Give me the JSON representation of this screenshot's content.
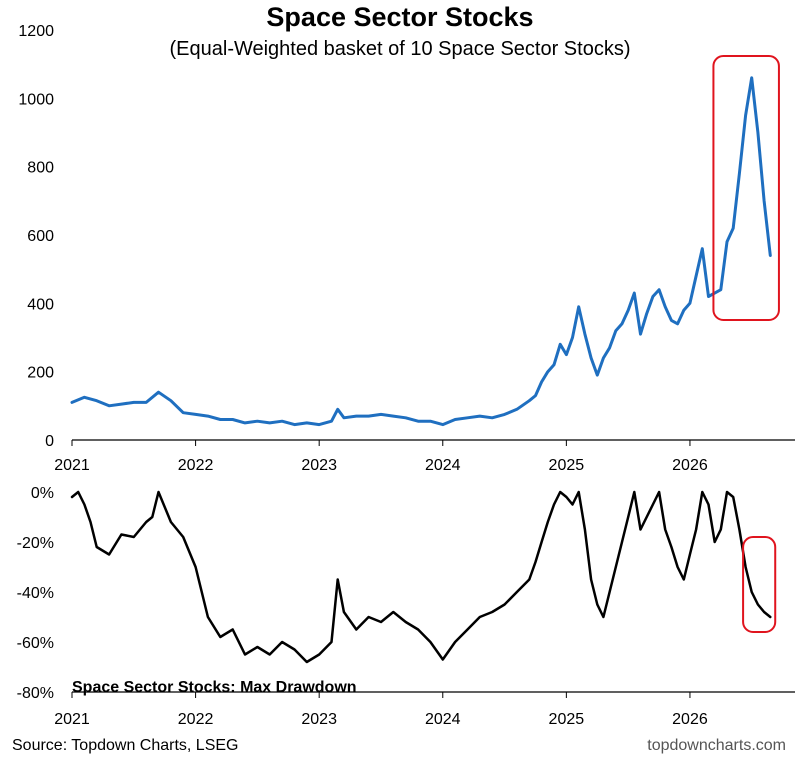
{
  "chart_data": [
    {
      "type": "line",
      "title": "Space Sector Stocks",
      "subtitle": "(Equal-Weighted basket of 10 Space Sector Stocks)",
      "ylim": [
        0,
        1200
      ],
      "xlim": [
        2021.0,
        2026.85
      ],
      "y_ticks": [
        "0",
        "200",
        "400",
        "600",
        "800",
        "1000",
        "1200"
      ],
      "x_ticks": [
        "2021",
        "2022",
        "2023",
        "2024",
        "2025",
        "2026"
      ],
      "series_color": "#1f6fc0",
      "highlight_color": "#e0141e",
      "highlight_x_range": [
        2026.19,
        2026.72
      ],
      "x": [
        2021.0,
        2021.1,
        2021.2,
        2021.3,
        2021.4,
        2021.5,
        2021.6,
        2021.7,
        2021.8,
        2021.9,
        2022.0,
        2022.1,
        2022.2,
        2022.3,
        2022.4,
        2022.5,
        2022.6,
        2022.7,
        2022.8,
        2022.9,
        2023.0,
        2023.1,
        2023.15,
        2023.2,
        2023.3,
        2023.4,
        2023.5,
        2023.6,
        2023.7,
        2023.8,
        2023.9,
        2024.0,
        2024.1,
        2024.2,
        2024.3,
        2024.4,
        2024.5,
        2024.6,
        2024.7,
        2024.75,
        2024.8,
        2024.85,
        2024.9,
        2024.95,
        2025.0,
        2025.05,
        2025.1,
        2025.15,
        2025.2,
        2025.25,
        2025.3,
        2025.35,
        2025.4,
        2025.45,
        2025.5,
        2025.55,
        2025.6,
        2025.65,
        2025.7,
        2025.75,
        2025.8,
        2025.85,
        2025.9,
        2025.95,
        2026.0,
        2026.05,
        2026.1,
        2026.15,
        2026.2,
        2026.25,
        2026.3,
        2026.35,
        2026.4,
        2026.45,
        2026.5,
        2026.55,
        2026.6,
        2026.65
      ],
      "values": [
        110,
        125,
        115,
        100,
        105,
        110,
        110,
        140,
        115,
        80,
        75,
        70,
        60,
        60,
        50,
        55,
        50,
        55,
        45,
        50,
        45,
        55,
        90,
        65,
        70,
        70,
        75,
        70,
        65,
        55,
        55,
        45,
        60,
        65,
        70,
        65,
        75,
        90,
        115,
        130,
        170,
        200,
        220,
        280,
        250,
        300,
        390,
        310,
        240,
        190,
        240,
        270,
        320,
        340,
        380,
        430,
        310,
        370,
        420,
        440,
        390,
        350,
        340,
        380,
        400,
        480,
        560,
        420,
        430,
        440,
        580,
        620,
        780,
        950,
        1060,
        900,
        700,
        540
      ]
    },
    {
      "type": "line",
      "title": "Space Sector Stocks: Max Drawdown",
      "ylim": [
        -80,
        0
      ],
      "xlim": [
        2021.0,
        2026.85
      ],
      "y_ticks": [
        "0%",
        "-20%",
        "-40%",
        "-60%",
        "-80%"
      ],
      "x_ticks": [
        "2021",
        "2022",
        "2023",
        "2024",
        "2025",
        "2026"
      ],
      "series_color": "#000000",
      "highlight_color": "#e0141e",
      "highlight_x_range": [
        2026.43,
        2026.69
      ],
      "x": [
        2021.0,
        2021.05,
        2021.1,
        2021.15,
        2021.2,
        2021.3,
        2021.4,
        2021.5,
        2021.6,
        2021.65,
        2021.7,
        2021.8,
        2021.9,
        2022.0,
        2022.1,
        2022.2,
        2022.3,
        2022.4,
        2022.5,
        2022.6,
        2022.7,
        2022.8,
        2022.9,
        2023.0,
        2023.1,
        2023.15,
        2023.2,
        2023.3,
        2023.4,
        2023.5,
        2023.6,
        2023.7,
        2023.8,
        2023.9,
        2024.0,
        2024.1,
        2024.2,
        2024.3,
        2024.4,
        2024.5,
        2024.6,
        2024.7,
        2024.75,
        2024.8,
        2024.85,
        2024.9,
        2024.95,
        2025.0,
        2025.05,
        2025.1,
        2025.15,
        2025.2,
        2025.25,
        2025.3,
        2025.35,
        2025.4,
        2025.45,
        2025.5,
        2025.55,
        2025.6,
        2025.65,
        2025.7,
        2025.75,
        2025.8,
        2025.85,
        2025.9,
        2025.95,
        2026.0,
        2026.05,
        2026.1,
        2026.15,
        2026.2,
        2026.25,
        2026.3,
        2026.35,
        2026.4,
        2026.45,
        2026.5,
        2026.55,
        2026.6,
        2026.65
      ],
      "values": [
        -2,
        0,
        -5,
        -12,
        -22,
        -25,
        -17,
        -18,
        -12,
        -10,
        0,
        -12,
        -18,
        -30,
        -50,
        -58,
        -55,
        -65,
        -62,
        -65,
        -60,
        -63,
        -68,
        -65,
        -60,
        -35,
        -48,
        -55,
        -50,
        -52,
        -48,
        -52,
        -55,
        -60,
        -67,
        -60,
        -55,
        -50,
        -48,
        -45,
        -40,
        -35,
        -28,
        -20,
        -12,
        -5,
        0,
        -2,
        -5,
        0,
        -15,
        -35,
        -45,
        -50,
        -40,
        -30,
        -20,
        -10,
        0,
        -15,
        -10,
        -5,
        0,
        -15,
        -22,
        -30,
        -35,
        -25,
        -15,
        0,
        -5,
        -20,
        -15,
        0,
        -2,
        -15,
        -30,
        -40,
        -45,
        -48,
        -50
      ]
    }
  ],
  "source": "Source: Topdown Charts, LSEG",
  "watermark": "topdowncharts.com"
}
